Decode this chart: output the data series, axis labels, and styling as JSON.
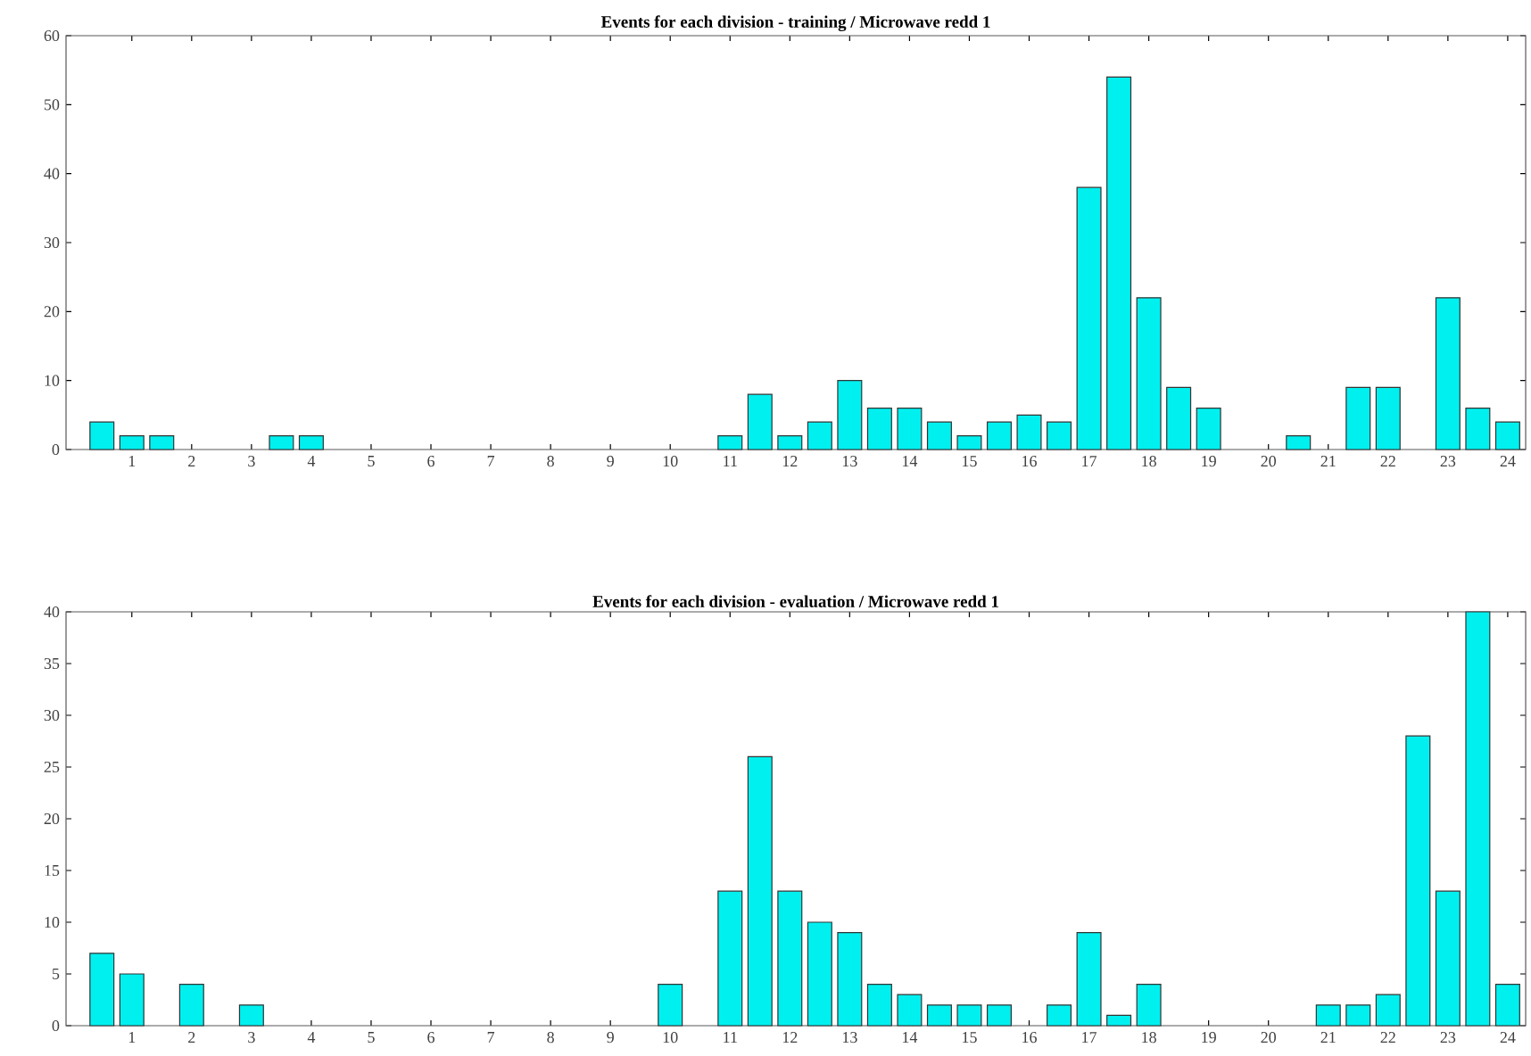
{
  "chart_data": [
    {
      "type": "bar",
      "title": "Events for each division - training / Microwave redd 1",
      "x": [
        0.5,
        1,
        1.5,
        2,
        2.5,
        3,
        3.5,
        4,
        4.5,
        5,
        5.5,
        6,
        6.5,
        7,
        7.5,
        8,
        8.5,
        9,
        9.5,
        10,
        10.5,
        11,
        11.5,
        12,
        12.5,
        13,
        13.5,
        14,
        14.5,
        15,
        15.5,
        16,
        16.5,
        17,
        17.5,
        18,
        18.5,
        19,
        19.5,
        20,
        20.5,
        21,
        21.5,
        22,
        22.5,
        23,
        23.5,
        24
      ],
      "values": [
        4,
        2,
        2,
        null,
        null,
        null,
        2,
        2,
        null,
        null,
        null,
        null,
        null,
        null,
        null,
        null,
        null,
        null,
        null,
        null,
        null,
        2,
        8,
        2,
        4,
        10,
        6,
        6,
        4,
        2,
        4,
        5,
        4,
        38,
        54,
        22,
        9,
        6,
        null,
        null,
        2,
        null,
        9,
        9,
        null,
        22,
        6,
        4
      ],
      "color": "#00f0f0",
      "xlim": [
        -0.1,
        24.3
      ],
      "ylim": [
        0,
        60
      ],
      "xticks": [
        1,
        2,
        3,
        4,
        5,
        6,
        7,
        8,
        9,
        10,
        11,
        12,
        13,
        14,
        15,
        16,
        17,
        18,
        19,
        20,
        21,
        22,
        23,
        24
      ],
      "yticks": [
        0,
        10,
        20,
        30,
        40,
        50,
        60
      ]
    },
    {
      "type": "bar",
      "title": "Events for each division - evaluation / Microwave redd 1",
      "x": [
        0.5,
        1,
        1.5,
        2,
        2.5,
        3,
        3.5,
        4,
        4.5,
        5,
        5.5,
        6,
        6.5,
        7,
        7.5,
        8,
        8.5,
        9,
        9.5,
        10,
        10.5,
        11,
        11.5,
        12,
        12.5,
        13,
        13.5,
        14,
        14.5,
        15,
        15.5,
        16,
        16.5,
        17,
        17.5,
        18,
        18.5,
        19,
        19.5,
        20,
        20.5,
        21,
        21.5,
        22,
        22.5,
        23,
        23.5,
        24
      ],
      "values": [
        7,
        5,
        null,
        4,
        null,
        2,
        null,
        null,
        null,
        null,
        null,
        null,
        null,
        null,
        null,
        null,
        null,
        null,
        null,
        4,
        null,
        13,
        26,
        13,
        10,
        9,
        4,
        3,
        2,
        2,
        2,
        null,
        2,
        9,
        1,
        4,
        null,
        null,
        null,
        null,
        null,
        2,
        2,
        3,
        28,
        13,
        40,
        4
      ],
      "color": "#00f0f0",
      "xlim": [
        -0.1,
        24.3
      ],
      "ylim": [
        0,
        40
      ],
      "xticks": [
        1,
        2,
        3,
        4,
        5,
        6,
        7,
        8,
        9,
        10,
        11,
        12,
        13,
        14,
        15,
        16,
        17,
        18,
        19,
        20,
        21,
        22,
        23,
        24
      ],
      "yticks": [
        0,
        5,
        10,
        15,
        20,
        25,
        30,
        35,
        40
      ]
    }
  ]
}
